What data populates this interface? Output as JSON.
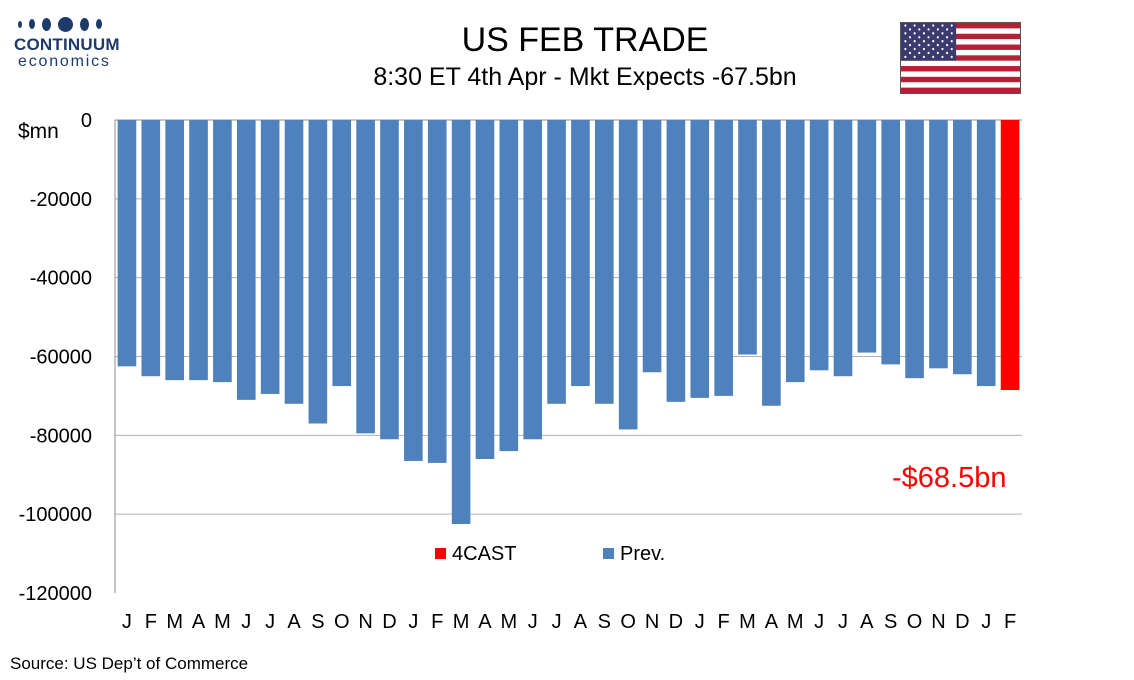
{
  "logo": {
    "line1": "CONTINUUM",
    "line2": "economics"
  },
  "title": "US FEB TRADE",
  "subtitle": "8:30 ET 4th Apr - Mkt Expects -67.5bn",
  "flag_icon": "us-flag-icon",
  "unit_label": "$mn",
  "callout": "-$68.5bn",
  "source": "Source: US Dep’t of Commerce",
  "colors": {
    "prev": "#4f81bd",
    "forecast": "#ff0000",
    "callout": "#ff0000"
  },
  "chart_data": {
    "type": "bar",
    "ylim": [
      -120000,
      0
    ],
    "yticks": [
      0,
      -20000,
      -40000,
      -60000,
      -80000,
      -100000,
      -120000
    ],
    "grid": true,
    "legend_position": "bottom-center",
    "categories": [
      "J",
      "F",
      "M",
      "A",
      "M",
      "J",
      "J",
      "A",
      "S",
      "O",
      "N",
      "D",
      "J",
      "F",
      "M",
      "A",
      "M",
      "J",
      "J",
      "A",
      "S",
      "O",
      "N",
      "D",
      "J",
      "F",
      "M",
      "A",
      "M",
      "J",
      "J",
      "A",
      "S",
      "O",
      "N",
      "D",
      "J",
      "F"
    ],
    "series": [
      {
        "name": "4CAST",
        "values": [
          null,
          null,
          null,
          null,
          null,
          null,
          null,
          null,
          null,
          null,
          null,
          null,
          null,
          null,
          null,
          null,
          null,
          null,
          null,
          null,
          null,
          null,
          null,
          null,
          null,
          null,
          null,
          null,
          null,
          null,
          null,
          null,
          null,
          null,
          null,
          null,
          null,
          -68500
        ]
      },
      {
        "name": "Prev.",
        "values": [
          -62500,
          -65000,
          -66000,
          -66000,
          -66500,
          -71000,
          -69500,
          -72000,
          -77000,
          -67500,
          -79500,
          -81000,
          -86500,
          -87000,
          -102500,
          -86000,
          -84000,
          -81000,
          -72000,
          -67500,
          -72000,
          -78500,
          -64000,
          -71500,
          -70500,
          -70000,
          -59500,
          -72500,
          -66500,
          -63500,
          -65000,
          -59000,
          -62000,
          -65500,
          -63000,
          -64500,
          -67500,
          null
        ]
      }
    ]
  }
}
